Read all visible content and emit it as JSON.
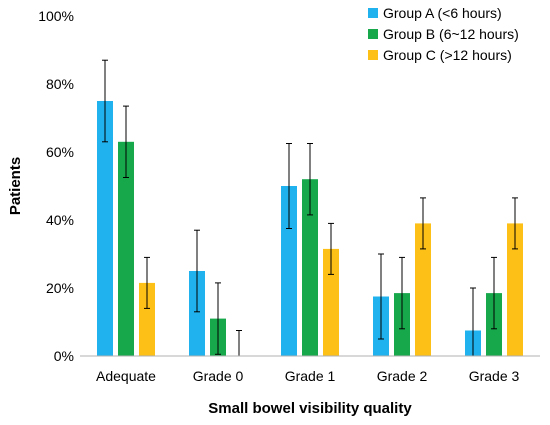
{
  "chart_data": {
    "type": "bar",
    "xlabel": "Small bowel visibility quality",
    "ylabel": "Patients",
    "ylim": [
      0,
      100
    ],
    "yticks": [
      "0%",
      "20%",
      "40%",
      "60%",
      "80%",
      "100%"
    ],
    "categories": [
      "Adequate",
      "Grade 0",
      "Grade 1",
      "Grade 2",
      "Grade 3"
    ],
    "series": [
      {
        "name": "Group A (<6 hours)",
        "color": "#1fb2ee",
        "values": [
          75,
          25,
          50,
          17.5,
          7.5
        ],
        "error": [
          12,
          12,
          12.5,
          12.5,
          12.5
        ]
      },
      {
        "name": "Group B (6~12 hours)",
        "color": "#17a84c",
        "values": [
          63,
          11,
          52,
          18.5,
          18.5
        ],
        "error": [
          10.5,
          10.5,
          10.5,
          10.5,
          10.5
        ]
      },
      {
        "name": "Group C (>12 hours)",
        "color": "#fdc017",
        "values": [
          21.5,
          0,
          31.5,
          39,
          39
        ],
        "error": [
          7.5,
          7.5,
          7.5,
          7.5,
          7.5
        ]
      }
    ],
    "legend_position": "top-right",
    "grid": false
  }
}
